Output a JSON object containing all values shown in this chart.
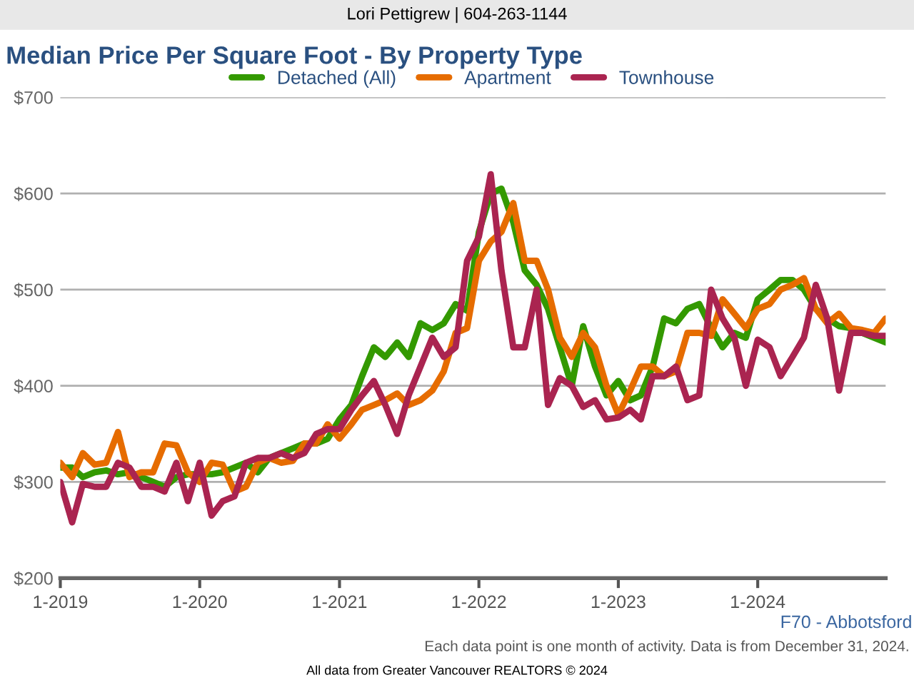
{
  "chart_data": {
    "type": "line",
    "title": "Median Price Per Square Foot - By Property Type",
    "x": [
      "2019-01",
      "2019-02",
      "2019-03",
      "2019-04",
      "2019-05",
      "2019-06",
      "2019-07",
      "2019-08",
      "2019-09",
      "2019-10",
      "2019-11",
      "2019-12",
      "2020-01",
      "2020-02",
      "2020-03",
      "2020-04",
      "2020-05",
      "2020-06",
      "2020-07",
      "2020-08",
      "2020-09",
      "2020-10",
      "2020-11",
      "2020-12",
      "2021-01",
      "2021-02",
      "2021-03",
      "2021-04",
      "2021-05",
      "2021-06",
      "2021-07",
      "2021-08",
      "2021-09",
      "2021-10",
      "2021-11",
      "2021-12",
      "2022-01",
      "2022-02",
      "2022-03",
      "2022-04",
      "2022-05",
      "2022-06",
      "2022-07",
      "2022-08",
      "2022-09",
      "2022-10",
      "2022-11",
      "2022-12",
      "2023-01",
      "2023-02",
      "2023-03",
      "2023-04",
      "2023-05",
      "2023-06",
      "2023-07",
      "2023-08",
      "2023-09",
      "2023-10",
      "2023-11",
      "2023-12",
      "2024-01",
      "2024-02",
      "2024-03",
      "2024-04",
      "2024-05",
      "2024-06",
      "2024-07",
      "2024-08",
      "2024-09",
      "2024-10",
      "2024-11",
      "2024-12"
    ],
    "series": [
      {
        "name": "Detached (All)",
        "color": "#339900",
        "values": [
          315,
          315,
          305,
          310,
          312,
          308,
          310,
          305,
          300,
          295,
          305,
          308,
          308,
          308,
          310,
          315,
          320,
          310,
          325,
          330,
          335,
          340,
          340,
          345,
          365,
          380,
          410,
          440,
          430,
          445,
          430,
          465,
          458,
          465,
          485,
          478,
          560,
          600,
          605,
          570,
          520,
          505,
          480,
          440,
          400,
          462,
          420,
          390,
          405,
          385,
          390,
          420,
          470,
          465,
          480,
          485,
          460,
          440,
          455,
          450,
          490,
          500,
          510,
          510,
          500,
          480,
          470,
          462,
          460,
          455,
          450,
          445
        ]
      },
      {
        "name": "Apartment",
        "color": "#e66c00",
        "values": [
          320,
          305,
          330,
          318,
          320,
          352,
          305,
          310,
          310,
          340,
          338,
          310,
          300,
          320,
          318,
          290,
          295,
          320,
          325,
          320,
          322,
          340,
          340,
          360,
          345,
          360,
          375,
          380,
          385,
          392,
          380,
          385,
          395,
          415,
          455,
          460,
          530,
          550,
          560,
          590,
          530,
          530,
          500,
          450,
          430,
          455,
          440,
          400,
          370,
          395,
          420,
          420,
          410,
          415,
          455,
          455,
          452,
          490,
          475,
          460,
          480,
          485,
          500,
          505,
          512,
          480,
          465,
          475,
          460,
          458,
          455,
          470
        ]
      },
      {
        "name": "Townhouse",
        "color": "#aa2450",
        "values": [
          300,
          258,
          298,
          295,
          295,
          320,
          315,
          295,
          295,
          290,
          320,
          280,
          320,
          265,
          280,
          285,
          320,
          325,
          325,
          330,
          325,
          330,
          350,
          355,
          355,
          375,
          390,
          405,
          380,
          350,
          390,
          420,
          450,
          430,
          440,
          530,
          555,
          620,
          520,
          440,
          440,
          500,
          380,
          408,
          400,
          378,
          385,
          365,
          367,
          375,
          365,
          410,
          410,
          420,
          385,
          390,
          500,
          470,
          450,
          400,
          448,
          440,
          410,
          430,
          450,
          505,
          470,
          395,
          455,
          455,
          452,
          452
        ]
      }
    ],
    "xlim": [
      "2019-01",
      "2024-12"
    ],
    "xticks": [
      {
        "value": "2019-01",
        "label": "1-2019"
      },
      {
        "value": "2020-01",
        "label": "1-2020"
      },
      {
        "value": "2021-01",
        "label": "1-2021"
      },
      {
        "value": "2022-01",
        "label": "1-2022"
      },
      {
        "value": "2023-01",
        "label": "1-2023"
      },
      {
        "value": "2024-01",
        "label": "1-2024"
      }
    ],
    "ylim": [
      200,
      700
    ],
    "yticks": [
      {
        "value": 200,
        "label": "$200"
      },
      {
        "value": 300,
        "label": "$300"
      },
      {
        "value": 400,
        "label": "$400"
      },
      {
        "value": 500,
        "label": "$500"
      },
      {
        "value": 600,
        "label": "$600"
      },
      {
        "value": 700,
        "label": "$700"
      }
    ],
    "grid": "y",
    "legend": "top",
    "marker": "none",
    "line_style": "solid",
    "annotations": [
      "Lori Pettigrew | 604-263-1144",
      "F70 - Abbotsford",
      "Each data point is one month of activity. Data is from December 31, 2024.",
      "All data from Greater Vancouver REALTORS © 2024"
    ]
  }
}
